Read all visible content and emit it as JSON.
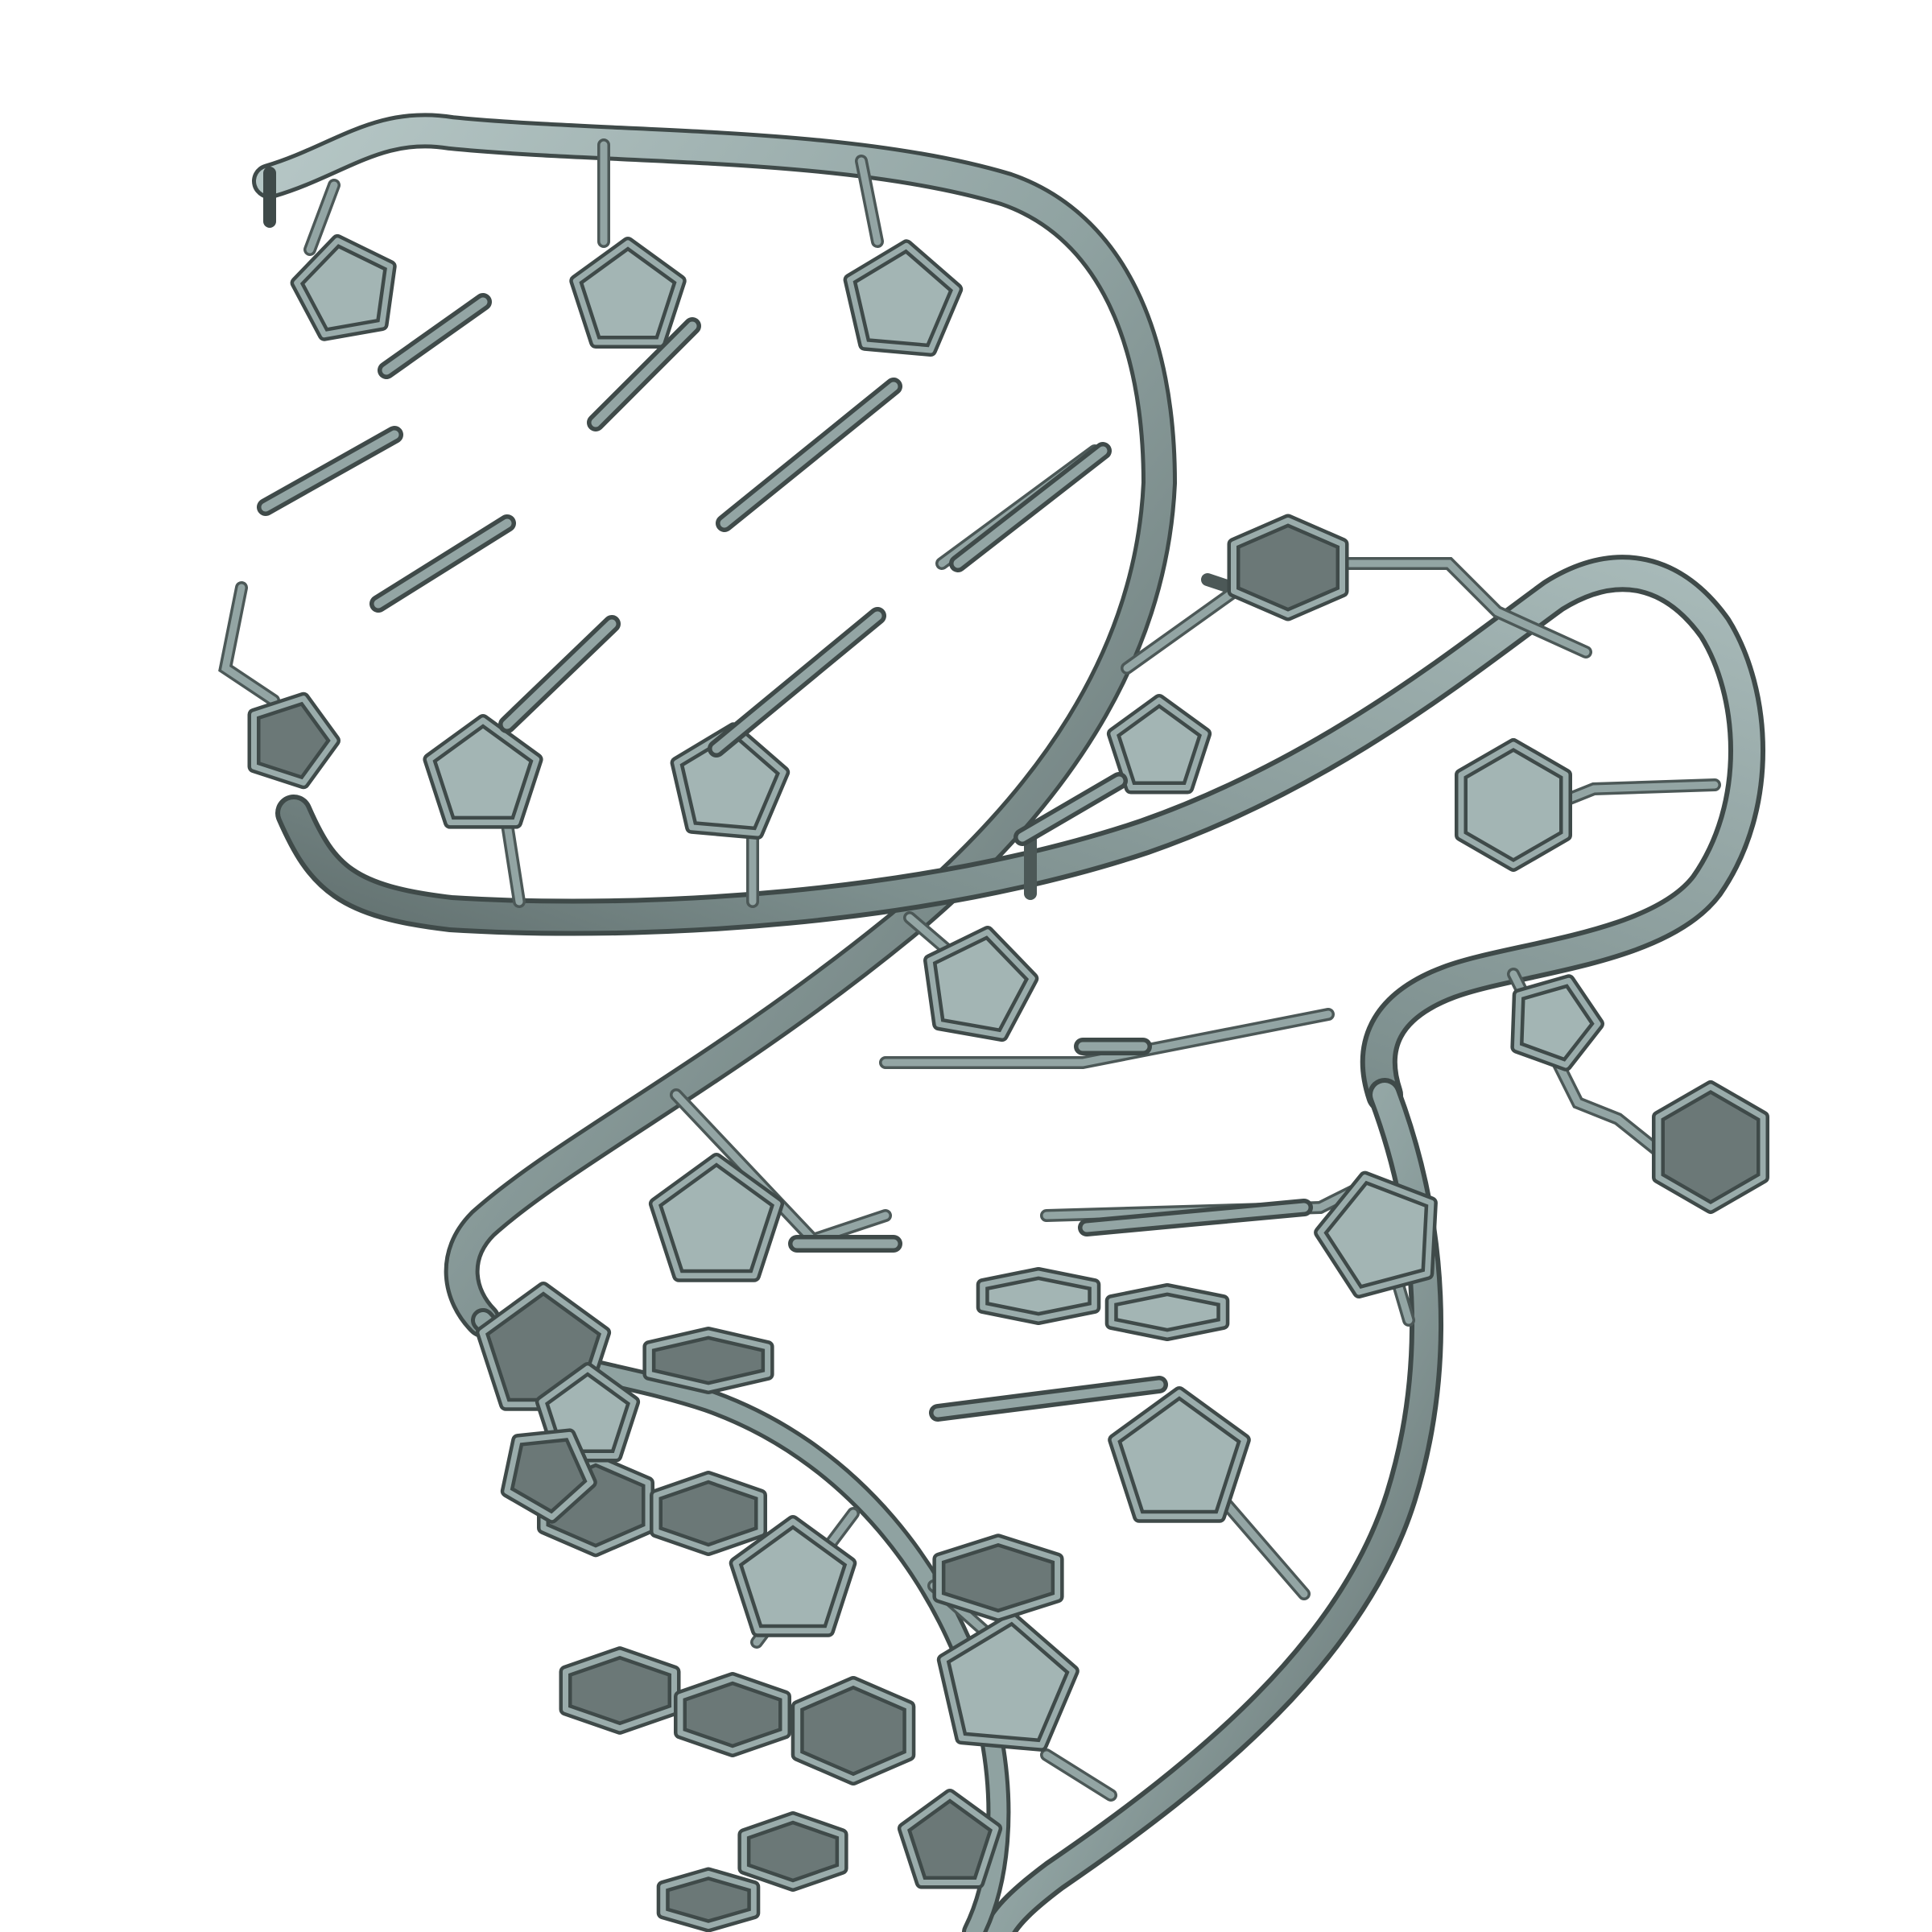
{
  "image": {
    "subject": "rna-hairpin-molecular-render",
    "colors": {
      "background": "#ffffff",
      "ribbon_light": "#a7b9b8",
      "ribbon_mid": "#8fa2a1",
      "ribbon_dark": "#55615f",
      "ring_light": "#a3b5b4",
      "ring_dark": "#6b7877",
      "stick": "#8fa1a0",
      "outline": "#3f4a49"
    }
  }
}
